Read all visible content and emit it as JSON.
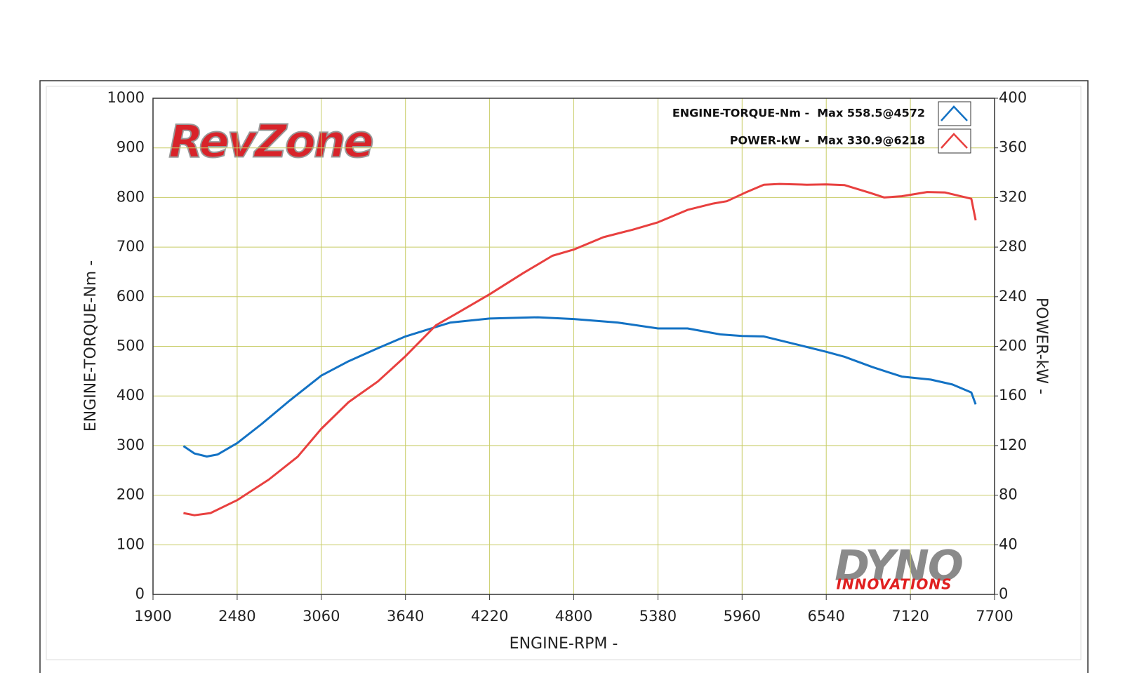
{
  "chart_data": {
    "type": "line",
    "logo_top": "RevZone",
    "logo_bottom": "DYNO",
    "logo_bottom_sub": "INNOVATIONS",
    "x_label": "ENGINE-RPM -",
    "y_label": "ENGINE-TORQUE-Nm -",
    "y2_label": "POWER-kW -",
    "xlim": [
      1900,
      7700
    ],
    "xticks": [
      1900,
      2480,
      3060,
      3640,
      4220,
      4800,
      5380,
      5960,
      6540,
      7120,
      7700
    ],
    "ylim": [
      0,
      1000
    ],
    "yticks": [
      0,
      100,
      200,
      300,
      400,
      500,
      600,
      700,
      800,
      900,
      1000
    ],
    "y2lim": [
      0,
      400
    ],
    "y2ticks": [
      0,
      40,
      80,
      120,
      160,
      200,
      240,
      280,
      320,
      360,
      400
    ],
    "grid": true,
    "legend_position": "top-right",
    "series": [
      {
        "name": "ENGINE-TORQUE-Nm -  Max 558.5@4572",
        "color": "#1372c4",
        "axis": "y",
        "x": [
          2110,
          2186,
          2271,
          2346,
          2480,
          2647,
          2847,
          3060,
          3248,
          3449,
          3640,
          3850,
          3950,
          4220,
          4552,
          4800,
          5103,
          5380,
          5584,
          5810,
          5960,
          6110,
          6360,
          6540,
          6665,
          6860,
          7060,
          7260,
          7410,
          7540,
          7570
        ],
        "values": [
          299,
          284,
          278,
          282,
          305,
          343,
          392,
          441,
          470,
          496,
          520,
          539,
          548,
          556,
          558.5,
          555,
          548,
          536,
          536,
          524,
          521,
          520,
          502,
          489,
          479,
          458,
          439,
          433,
          423,
          407,
          383
        ]
      },
      {
        "name": "POWER-kW -  Max 330.9@6218",
        "color": "#e8403f",
        "axis": "y2",
        "x": [
          2110,
          2186,
          2296,
          2480,
          2697,
          2897,
          3060,
          3248,
          3449,
          3640,
          3850,
          4000,
          4220,
          4451,
          4652,
          4800,
          5004,
          5204,
          5380,
          5584,
          5757,
          5855,
          5984,
          6110,
          6218,
          6406,
          6540,
          6665,
          6840,
          6940,
          7060,
          7236,
          7360,
          7540,
          7570
        ],
        "values": [
          65.6,
          63.8,
          65.6,
          76,
          92.5,
          111,
          133.5,
          155,
          171.6,
          192,
          217,
          227,
          242,
          259,
          273,
          278,
          288,
          294,
          300,
          310,
          315,
          317,
          324,
          330.3,
          330.9,
          330.3,
          330.5,
          330,
          323.8,
          320,
          321,
          324.4,
          324,
          319,
          301.6
        ]
      }
    ]
  }
}
